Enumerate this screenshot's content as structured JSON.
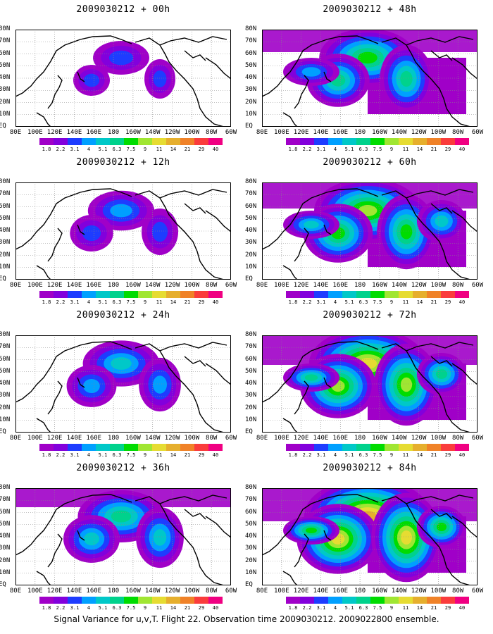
{
  "panels": [
    {
      "title": "2009030212 + 00h",
      "level": 0
    },
    {
      "title": "2009030212 + 48h",
      "level": 4
    },
    {
      "title": "2009030212 + 12h",
      "level": 1
    },
    {
      "title": "2009030212 + 60h",
      "level": 5
    },
    {
      "title": "2009030212 + 24h",
      "level": 2
    },
    {
      "title": "2009030212 + 72h",
      "level": 6
    },
    {
      "title": "2009030212 + 36h",
      "level": 3
    },
    {
      "title": "2009030212 + 84h",
      "level": 7
    }
  ],
  "lat_labels": [
    "80N",
    "70N",
    "60N",
    "50N",
    "40N",
    "30N",
    "20N",
    "10N",
    "EQ"
  ],
  "lon_labels": [
    "80E",
    "100E",
    "120E",
    "140E",
    "160E",
    "180",
    "160W",
    "140W",
    "120W",
    "100W",
    "80W",
    "60W"
  ],
  "colorbar": {
    "labels": [
      "1.8",
      "2.2",
      "3.1",
      "4",
      "5.1",
      "6.3",
      "7.5",
      "9",
      "11",
      "14",
      "21",
      "29",
      "40"
    ],
    "colors": [
      "#a000c8",
      "#8200dc",
      "#1e3cff",
      "#00a0ff",
      "#00c8c8",
      "#00d28c",
      "#00dc00",
      "#a0e632",
      "#e6dc32",
      "#e6af2d",
      "#f08228",
      "#fa3c3c",
      "#f00082"
    ]
  },
  "footer": "Signal Variance for u,v,T. Flight 22. Observation time 2009030212. 2009022800 ensemble."
}
